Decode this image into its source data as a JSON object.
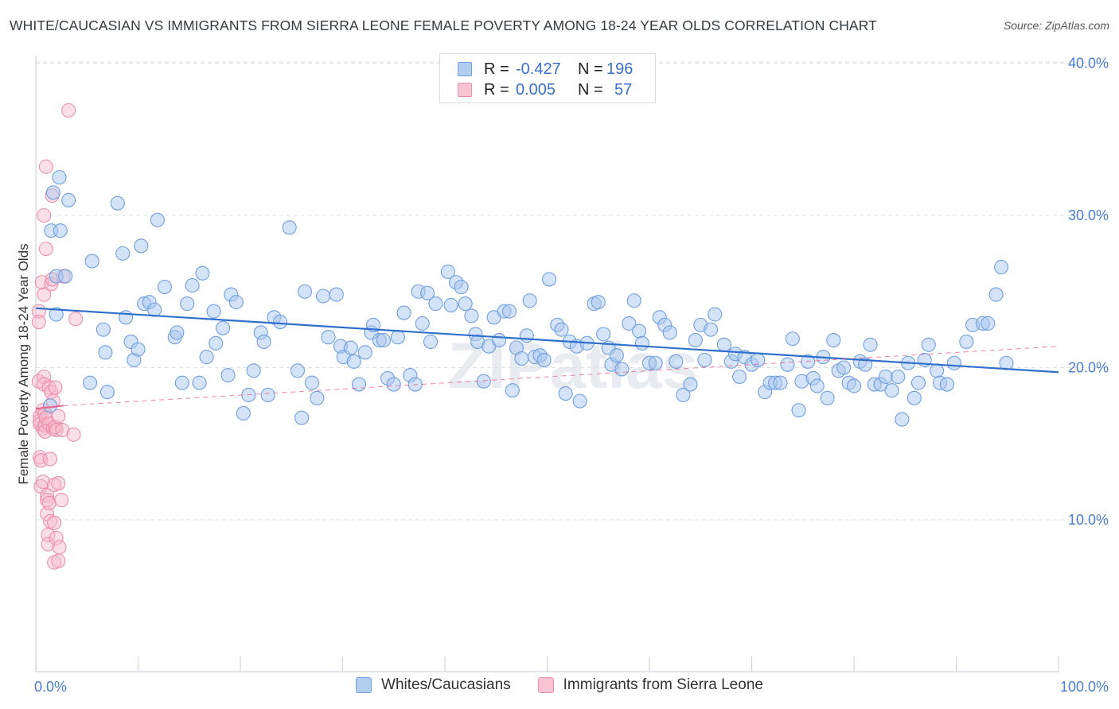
{
  "title": "WHITE/CAUCASIAN VS IMMIGRANTS FROM SIERRA LEONE FEMALE POVERTY AMONG 18-24 YEAR OLDS CORRELATION CHART",
  "source": "Source: ZipAtlas.com",
  "watermark": "ZIPatlas",
  "legend": {
    "series1": {
      "r_label": "R =",
      "r_value": "-0.427",
      "n_label": "N =",
      "n_value": "196"
    },
    "series2": {
      "r_label": "R =",
      "r_value": "0.005",
      "n_label": "N =",
      "n_value": "57"
    }
  },
  "bottom_legend": {
    "series1": "Whites/Caucasians",
    "series2": "Immigrants from Sierra Leone"
  },
  "colors": {
    "blue_fill": "#a9c8f0",
    "blue_stroke": "#6f9fe0",
    "blue_line": "#2f6fce",
    "pink_fill": "#f6b8cb",
    "pink_stroke": "#ec8fab",
    "pink_line": "#e8648b",
    "axis_text": "#4a7dcc",
    "grid": "#dde1e6"
  },
  "chart_data": {
    "type": "scatter",
    "title": "WHITE/CAUCASIAN VS IMMIGRANTS FROM SIERRA LEONE FEMALE POVERTY AMONG 18-24 YEAR OLDS CORRELATION CHART",
    "xlabel": "",
    "ylabel": "Female Poverty Among 18-24 Year Olds",
    "xlim": [
      0,
      100
    ],
    "ylim": [
      0,
      42
    ],
    "x_tick_labels": [
      "0.0%",
      "100.0%"
    ],
    "y_ticks": [
      10,
      20,
      30,
      40
    ],
    "y_tick_labels": [
      "10.0%",
      "20.0%",
      "30.0%",
      "40.0%"
    ],
    "grid": true,
    "series": [
      {
        "name": "Whites/Caucasians",
        "r": -0.427,
        "n": 196,
        "trend": {
          "x": [
            0,
            100
          ],
          "y": [
            23.9,
            19.7
          ]
        },
        "points": [
          [
            1.4,
            17.5
          ],
          [
            1.5,
            29.0
          ],
          [
            1.7,
            31.5
          ],
          [
            2.0,
            23.5
          ],
          [
            2.0,
            26.0
          ],
          [
            2.3,
            32.5
          ],
          [
            2.4,
            29.0
          ],
          [
            2.9,
            26.0
          ],
          [
            3.2,
            31.0
          ],
          [
            5.5,
            27.0
          ],
          [
            5.3,
            19.0
          ],
          [
            6.6,
            22.5
          ],
          [
            6.8,
            21.0
          ],
          [
            7.0,
            18.4
          ],
          [
            8.0,
            30.8
          ],
          [
            8.5,
            27.5
          ],
          [
            8.8,
            23.3
          ],
          [
            9.3,
            21.7
          ],
          [
            9.6,
            20.5
          ],
          [
            10.0,
            21.2
          ],
          [
            10.3,
            28.0
          ],
          [
            10.6,
            24.2
          ],
          [
            11.1,
            24.3
          ],
          [
            11.6,
            23.8
          ],
          [
            11.9,
            29.7
          ],
          [
            12.6,
            25.3
          ],
          [
            13.6,
            22.0
          ],
          [
            13.8,
            22.3
          ],
          [
            14.3,
            19.0
          ],
          [
            14.8,
            24.2
          ],
          [
            15.3,
            25.4
          ],
          [
            16.0,
            19.0
          ],
          [
            16.3,
            26.2
          ],
          [
            16.7,
            20.7
          ],
          [
            17.4,
            23.7
          ],
          [
            17.6,
            21.6
          ],
          [
            18.3,
            22.6
          ],
          [
            18.8,
            19.5
          ],
          [
            19.1,
            24.8
          ],
          [
            19.6,
            24.3
          ],
          [
            20.3,
            17.0
          ],
          [
            20.8,
            18.2
          ],
          [
            21.3,
            19.8
          ],
          [
            22.0,
            22.3
          ],
          [
            22.3,
            21.7
          ],
          [
            22.7,
            18.2
          ],
          [
            23.3,
            23.3
          ],
          [
            23.9,
            23.0
          ],
          [
            24.8,
            29.2
          ],
          [
            25.6,
            19.8
          ],
          [
            26.0,
            16.7
          ],
          [
            26.3,
            25.0
          ],
          [
            27.0,
            19.0
          ],
          [
            27.5,
            18.0
          ],
          [
            28.1,
            24.7
          ],
          [
            28.6,
            22.0
          ],
          [
            29.4,
            24.8
          ],
          [
            29.8,
            21.4
          ],
          [
            30.1,
            20.7
          ],
          [
            30.8,
            21.3
          ],
          [
            31.1,
            20.4
          ],
          [
            31.6,
            18.9
          ],
          [
            32.2,
            21.0
          ],
          [
            32.8,
            22.3
          ],
          [
            33.0,
            22.8
          ],
          [
            33.6,
            21.8
          ],
          [
            34.0,
            21.8
          ],
          [
            34.4,
            19.3
          ],
          [
            35.0,
            18.9
          ],
          [
            35.4,
            22.0
          ],
          [
            36.0,
            23.6
          ],
          [
            36.6,
            19.5
          ],
          [
            37.1,
            18.9
          ],
          [
            37.4,
            25.0
          ],
          [
            37.8,
            22.9
          ],
          [
            38.3,
            24.9
          ],
          [
            38.6,
            21.7
          ],
          [
            39.1,
            24.2
          ],
          [
            40.3,
            26.3
          ],
          [
            40.6,
            24.1
          ],
          [
            41.1,
            25.6
          ],
          [
            41.6,
            25.3
          ],
          [
            42.0,
            24.2
          ],
          [
            42.6,
            23.4
          ],
          [
            43.0,
            22.2
          ],
          [
            43.2,
            21.7
          ],
          [
            43.8,
            19.1
          ],
          [
            44.3,
            21.4
          ],
          [
            44.8,
            23.3
          ],
          [
            45.3,
            21.8
          ],
          [
            45.8,
            23.7
          ],
          [
            46.3,
            23.7
          ],
          [
            46.6,
            18.5
          ],
          [
            47.0,
            21.3
          ],
          [
            47.5,
            20.6
          ],
          [
            48.0,
            22.1
          ],
          [
            48.3,
            24.4
          ],
          [
            48.8,
            20.7
          ],
          [
            49.3,
            20.8
          ],
          [
            49.7,
            20.5
          ],
          [
            50.2,
            25.8
          ],
          [
            51.0,
            22.8
          ],
          [
            51.4,
            22.5
          ],
          [
            51.8,
            18.3
          ],
          [
            52.2,
            21.7
          ],
          [
            52.9,
            21.4
          ],
          [
            53.2,
            17.8
          ],
          [
            53.9,
            21.6
          ],
          [
            54.6,
            24.2
          ],
          [
            55.0,
            24.3
          ],
          [
            55.5,
            22.2
          ],
          [
            56.0,
            21.3
          ],
          [
            56.3,
            20.2
          ],
          [
            56.8,
            20.8
          ],
          [
            57.3,
            19.9
          ],
          [
            58.0,
            22.9
          ],
          [
            58.5,
            24.4
          ],
          [
            59.0,
            22.4
          ],
          [
            59.3,
            21.6
          ],
          [
            60.0,
            20.3
          ],
          [
            60.6,
            20.3
          ],
          [
            61.0,
            23.3
          ],
          [
            61.5,
            22.8
          ],
          [
            62.0,
            22.3
          ],
          [
            62.6,
            20.4
          ],
          [
            63.3,
            18.2
          ],
          [
            64.0,
            18.9
          ],
          [
            64.5,
            21.8
          ],
          [
            65.0,
            22.8
          ],
          [
            65.4,
            20.5
          ],
          [
            66.0,
            22.5
          ],
          [
            66.4,
            23.5
          ],
          [
            67.3,
            21.5
          ],
          [
            68.0,
            20.4
          ],
          [
            68.4,
            20.9
          ],
          [
            68.8,
            19.4
          ],
          [
            69.3,
            20.7
          ],
          [
            70.0,
            20.2
          ],
          [
            70.6,
            20.5
          ],
          [
            71.3,
            18.4
          ],
          [
            71.8,
            19.0
          ],
          [
            72.3,
            19.0
          ],
          [
            72.8,
            19.0
          ],
          [
            73.5,
            20.2
          ],
          [
            74.0,
            21.9
          ],
          [
            74.6,
            17.2
          ],
          [
            74.9,
            19.1
          ],
          [
            75.5,
            20.4
          ],
          [
            76.0,
            19.3
          ],
          [
            76.4,
            18.8
          ],
          [
            77.0,
            20.7
          ],
          [
            77.4,
            18.0
          ],
          [
            78.0,
            21.8
          ],
          [
            78.5,
            19.8
          ],
          [
            79.0,
            20.0
          ],
          [
            79.5,
            19.0
          ],
          [
            80.0,
            18.8
          ],
          [
            80.6,
            20.4
          ],
          [
            81.1,
            20.2
          ],
          [
            81.6,
            21.5
          ],
          [
            82.0,
            18.9
          ],
          [
            82.6,
            18.9
          ],
          [
            83.1,
            19.4
          ],
          [
            83.7,
            18.5
          ],
          [
            84.3,
            19.4
          ],
          [
            84.7,
            16.6
          ],
          [
            85.3,
            20.3
          ],
          [
            85.9,
            18.0
          ],
          [
            86.3,
            19.0
          ],
          [
            86.9,
            20.5
          ],
          [
            87.3,
            21.5
          ],
          [
            88.1,
            19.8
          ],
          [
            88.4,
            19.0
          ],
          [
            89.1,
            18.9
          ],
          [
            89.8,
            20.3
          ],
          [
            91.0,
            21.7
          ],
          [
            91.6,
            22.8
          ],
          [
            92.6,
            22.9
          ],
          [
            93.1,
            22.9
          ],
          [
            93.9,
            24.8
          ],
          [
            94.4,
            26.6
          ],
          [
            94.9,
            20.3
          ]
        ]
      },
      {
        "name": "Immigrants from Sierra Leone",
        "r": 0.005,
        "n": 57,
        "trend_solid": {
          "x": [
            0,
            2.7
          ],
          "y": [
            17.3,
            17.5
          ]
        },
        "trend_dashed": {
          "x": [
            2.7,
            100
          ],
          "y": [
            17.5,
            21.4
          ]
        },
        "points": [
          [
            0.3,
            23.7
          ],
          [
            0.3,
            23.0
          ],
          [
            0.3,
            19.1
          ],
          [
            0.4,
            16.8
          ],
          [
            0.4,
            16.5
          ],
          [
            0.4,
            16.3
          ],
          [
            0.4,
            14.1
          ],
          [
            0.5,
            13.9
          ],
          [
            0.5,
            12.2
          ],
          [
            0.6,
            25.6
          ],
          [
            0.7,
            17.2
          ],
          [
            0.7,
            16.0
          ],
          [
            0.7,
            12.5
          ],
          [
            0.8,
            30.0
          ],
          [
            0.8,
            24.8
          ],
          [
            0.8,
            19.4
          ],
          [
            0.8,
            18.9
          ],
          [
            0.9,
            17.0
          ],
          [
            0.9,
            16.2
          ],
          [
            0.9,
            15.8
          ],
          [
            1.0,
            33.2
          ],
          [
            1.0,
            27.8
          ],
          [
            1.0,
            16.7
          ],
          [
            1.1,
            11.6
          ],
          [
            1.1,
            11.3
          ],
          [
            1.1,
            10.4
          ],
          [
            1.2,
            9.0
          ],
          [
            1.2,
            8.4
          ],
          [
            1.3,
            18.7
          ],
          [
            1.3,
            16.3
          ],
          [
            1.3,
            11.1
          ],
          [
            1.4,
            14.0
          ],
          [
            1.4,
            9.9
          ],
          [
            1.5,
            25.5
          ],
          [
            1.5,
            18.4
          ],
          [
            1.6,
            31.3
          ],
          [
            1.6,
            25.8
          ],
          [
            1.7,
            17.8
          ],
          [
            1.7,
            16.0
          ],
          [
            1.8,
            12.3
          ],
          [
            1.8,
            9.8
          ],
          [
            1.8,
            7.2
          ],
          [
            1.9,
            18.7
          ],
          [
            1.9,
            16.1
          ],
          [
            2.0,
            15.9
          ],
          [
            2.0,
            8.8
          ],
          [
            2.2,
            16.8
          ],
          [
            2.2,
            12.4
          ],
          [
            2.2,
            7.3
          ],
          [
            2.3,
            8.2
          ],
          [
            2.5,
            11.3
          ],
          [
            2.6,
            15.9
          ],
          [
            2.7,
            26.0
          ],
          [
            3.2,
            36.9
          ],
          [
            3.7,
            15.6
          ],
          [
            3.9,
            23.2
          ]
        ]
      }
    ]
  }
}
